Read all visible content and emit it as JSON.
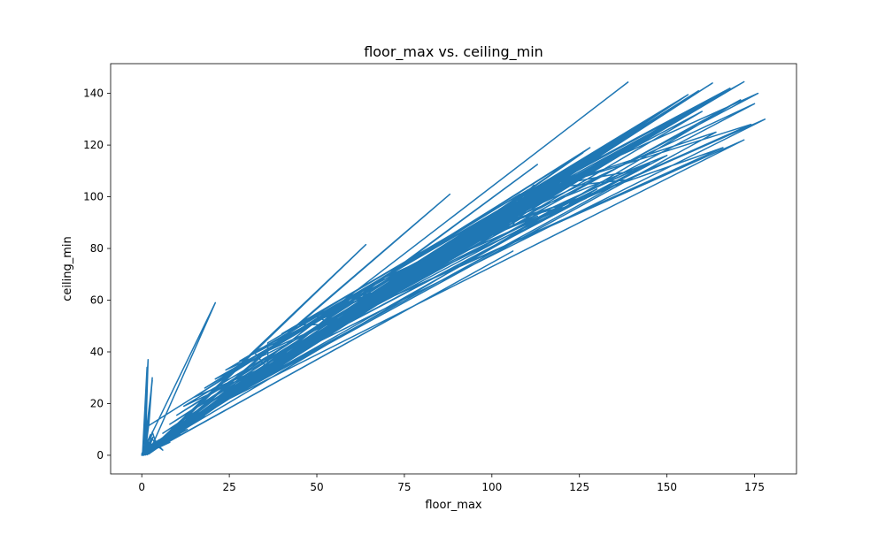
{
  "chart_data": {
    "type": "line",
    "title": "floor_max vs. ceiling_min",
    "xlabel": "floor_max",
    "ylabel": "ceiling_min",
    "xlim": [
      -8.9,
      187.0
    ],
    "ylim": [
      -7.2,
      151.5
    ],
    "xticks": [
      0,
      25,
      50,
      75,
      100,
      125,
      150,
      175
    ],
    "yticks": [
      0,
      20,
      40,
      60,
      80,
      100,
      120,
      140
    ],
    "grid": false,
    "legend": "none",
    "series": [
      {
        "color": "#1f77b4",
        "x": [
          0.0,
          1.2,
          2.0,
          0.5,
          3.0,
          0.2,
          1.5,
          0.8,
          0.0,
          2.5,
          1.0,
          1.8,
          0.3,
          2.2,
          0.6,
          3.0,
          1.0,
          0.4,
          2.0,
          1.6,
          3.0,
          4.5,
          1.2,
          0.5,
          2.8,
          6.0,
          3.5,
          1.0,
          0.0,
          2.0,
          3.2,
          1.5,
          4.0,
          0.6,
          2.4,
          1.0,
          0.3,
          3.0,
          5.0,
          2.0,
          0.8,
          1.6,
          0.4,
          2.6,
          1.2,
          8.0,
          0.5,
          0.0,
          1.5,
          3.4,
          1.0,
          2.2,
          0.6,
          1.8,
          0.0,
          2.0,
          4.8,
          1.0,
          6.0,
          1.2,
          0.4,
          2.5,
          1.0,
          0.3,
          3.0,
          9.0,
          1.5,
          2.0,
          5.0,
          0.6,
          1.2,
          7.0,
          2.0,
          1.0,
          0.5,
          3.0,
          11.0,
          4.0,
          0.8,
          2.0,
          1.0,
          6.0,
          13.0,
          2.5,
          4.0,
          1.5,
          8.0,
          0.8,
          3.5,
          15.0,
          1.0,
          6.5,
          2.0,
          10.0,
          1.5,
          0.8,
          18.0,
          3.0,
          7.0,
          1.0,
          12.0,
          2.0,
          4.5,
          20.0,
          1.2,
          9.0,
          2.0,
          14.0,
          0.8,
          5.0,
          22.0,
          1.5,
          11.0,
          3.0,
          17.0,
          1.0,
          25.0,
          4.0,
          8.0,
          0.6,
          19.0,
          2.0,
          28.0,
          6.0,
          13.0,
          1.0,
          31.0,
          3.0,
          16.0,
          0.5,
          23.0,
          5.0,
          35.0,
          1.5,
          9.0,
          26.0,
          2.0,
          38.0,
          4.0,
          14.0,
          1.0,
          29.0,
          7.0,
          42.0,
          0.8,
          18.0,
          3.0,
          33.0,
          10.0,
          45.0,
          2.0,
          21.0,
          5.0,
          37.0,
          1.0,
          49.0,
          12.0,
          25.0,
          0.6,
          40.0,
          6.0,
          52.0,
          3.0,
          30.0,
          15.0,
          44.0,
          1.5,
          56.0,
          8.0,
          34.0,
          2.0,
          48.0,
          18.0,
          60.0,
          4.0,
          38.0,
          10.0,
          53.0,
          1.0,
          64.0,
          22.0,
          42.0,
          5.0,
          57.0,
          13.0,
          68.0,
          2.5,
          46.0,
          26.0,
          62.0,
          7.0,
          72.0,
          16.0,
          51.0,
          1.5,
          66.0,
          30.0,
          76.0,
          9.0,
          55.0,
          20.0,
          70.0,
          3.0,
          80.0,
          35.0,
          60.0,
          12.0,
          74.0,
          24.0,
          85.0,
          2.0,
          64.0,
          40.0,
          78.0,
          15.0,
          88.0,
          5.0,
          68.0,
          28.0,
          83.0,
          44.0,
          92.0,
          18.0,
          72.0,
          1.0,
          87.0,
          32.0,
          96.0,
          50.0,
          76.0,
          8.0,
          91.0,
          22.0,
          100.0,
          38.0,
          80.0,
          55.0,
          95.0,
          12.0,
          104.0,
          26.0,
          84.0,
          44.0,
          99.0,
          3.0,
          108.0,
          60.0,
          88.0,
          30.0,
          103.0,
          16.0,
          112.0,
          48.0,
          92.0,
          6.0,
          107.0,
          34.0,
          116.0,
          66.0,
          96.0,
          20.0,
          111.0,
          52.0,
          120.0,
          10.0,
          100.0,
          38.0,
          115.0,
          70.0,
          124.0,
          24.0,
          104.0,
          56.0,
          119.0,
          4.0,
          128.0,
          42.0,
          108.0,
          76.0,
          123.0,
          14.0,
          132.0,
          28.0,
          112.0,
          60.0,
          127.0,
          46.0,
          136.0,
          80.0,
          116.0,
          8.0,
          131.0,
          32.0,
          140.0,
          64.0,
          120.0,
          18.0,
          135.0,
          50.0,
          144.0,
          86.0,
          124.0,
          2.0,
          139.0,
          36.0,
          148.0,
          68.0,
          128.0,
          22.0,
          143.0,
          54.0,
          152.0,
          90.0,
          132.0,
          12.0,
          147.0,
          40.0,
          156.0,
          72.0,
          136.0,
          26.0,
          151.0,
          58.0,
          160.0,
          94.0,
          140.0,
          6.0,
          155.0,
          44.0,
          164.0,
          76.0,
          144.0,
          30.0,
          159.0,
          62.0,
          168.0,
          98.0,
          148.0,
          16.0,
          163.0,
          48.0,
          172.0,
          80.0,
          152.0,
          34.0,
          167.0,
          66.0,
          176.0,
          102.0,
          156.0,
          2.0,
          171.0,
          52.0,
          175.0,
          84.0,
          160.0,
          38.0,
          178.0,
          70.0,
          174.0,
          106.0,
          164.0,
          20.0,
          172.0,
          56.0,
          166.0,
          88.0,
          150.0,
          42.0,
          145.0,
          74.0,
          140.0,
          110.0,
          138.0,
          24.0,
          130.0,
          60.0,
          127.0,
          92.0,
          120.0,
          46.0,
          113.0,
          78.0,
          106.0,
          112.0,
          98.0,
          28.0,
          93.0,
          64.0,
          87.0,
          96.0,
          80.0,
          50.0,
          75.0,
          82.0,
          68.0,
          108.0,
          64.0,
          32.0,
          60.0,
          68.0,
          55.0,
          100.0,
          50.0,
          54.0,
          45.0,
          86.0,
          40.0,
          112.0,
          36.0,
          36.0,
          32.0,
          72.0,
          28.0,
          104.0,
          24.0,
          58.0,
          21.0,
          90.0,
          18.0,
          120.0,
          15.0,
          40.0,
          12.0,
          76.0,
          10.0,
          108.0,
          8.0,
          62.0,
          6.0,
          94.0,
          4.0,
          126.0,
          3.0,
          44.0,
          2.0,
          80.0,
          1.5,
          112.0,
          1.0,
          66.0,
          0.5,
          98.0,
          0.2,
          128.0,
          2.0,
          3.0,
          1.0,
          2.0,
          21.0,
          2.0,
          29.0,
          1.0,
          64.0,
          2.0,
          88.0,
          1.0,
          106.0,
          1.0,
          113.0,
          0.0,
          139.0
        ],
        "y": [
          0.0,
          3.5,
          12.0,
          1.0,
          6.0,
          0.2,
          34.0,
          2.0,
          0.5,
          8.0,
          1.5,
          37.0,
          0.3,
          4.0,
          1.0,
          29.0,
          2.5,
          0.4,
          5.0,
          1.0,
          9.0,
          3.0,
          0.8,
          0.2,
          6.5,
          2.0,
          4.5,
          1.0,
          0.0,
          3.0,
          7.0,
          0.8,
          5.5,
          0.3,
          2.5,
          1.2,
          0.2,
          4.0,
          6.0,
          1.5,
          0.5,
          3.2,
          0.1,
          2.0,
          0.8,
          5.0,
          0.3,
          0.0,
          1.8,
          4.2,
          0.6,
          2.6,
          0.2,
          1.4,
          0.0,
          3.6,
          5.8,
          0.8,
          4.4,
          1.2,
          0.3,
          2.2,
          0.7,
          0.1,
          3.0,
          6.5,
          1.0,
          2.4,
          4.8,
          0.4,
          1.6,
          5.6,
          2.0,
          0.6,
          0.2,
          3.4,
          8.0,
          4.0,
          0.5,
          2.8,
          0.9,
          6.2,
          10.0,
          2.2,
          4.6,
          1.0,
          7.4,
          0.4,
          3.6,
          12.5,
          0.8,
          6.0,
          2.0,
          9.6,
          1.2,
          0.5,
          15.0,
          3.0,
          7.8,
          0.7,
          11.0,
          2.0,
          4.6,
          17.5,
          1.0,
          9.0,
          2.2,
          13.0,
          0.6,
          5.2,
          19.5,
          1.4,
          10.5,
          3.2,
          15.5,
          0.8,
          22.0,
          4.4,
          8.2,
          0.5,
          17.5,
          2.0,
          25.0,
          6.2,
          12.5,
          0.9,
          28.0,
          3.0,
          15.0,
          0.4,
          21.0,
          5.0,
          31.0,
          1.6,
          9.0,
          24.0,
          2.0,
          34.0,
          4.0,
          13.5,
          1.0,
          27.0,
          7.0,
          37.5,
          0.8,
          17.0,
          3.0,
          30.0,
          10.0,
          40.0,
          2.0,
          20.0,
          5.0,
          34.0,
          1.0,
          44.0,
          11.5,
          23.5,
          0.6,
          37.0,
          6.0,
          47.0,
          3.0,
          28.0,
          14.0,
          41.0,
          1.4,
          50.0,
          7.6,
          32.0,
          2.0,
          44.5,
          17.0,
          54.0,
          4.0,
          35.5,
          9.6,
          49.0,
          1.0,
          58.0,
          20.5,
          39.0,
          5.0,
          52.5,
          12.5,
          61.0,
          2.4,
          43.0,
          24.5,
          57.0,
          6.8,
          64.0,
          15.0,
          47.5,
          1.4,
          60.5,
          28.0,
          68.0,
          8.6,
          51.5,
          19.0,
          64.0,
          3.0,
          71.0,
          33.0,
          55.5,
          11.5,
          67.5,
          22.5,
          74.5,
          2.0,
          59.0,
          37.5,
          71.0,
          14.5,
          77.0,
          5.0,
          62.5,
          26.5,
          75.0,
          41.5,
          80.5,
          17.0,
          66.0,
          1.0,
          78.5,
          30.0,
          84.0,
          47.0,
          69.5,
          7.6,
          82.0,
          21.0,
          87.5,
          35.5,
          73.0,
          51.5,
          85.5,
          11.5,
          91.0,
          24.5,
          76.5,
          41.0,
          89.0,
          3.0,
          94.0,
          56.0,
          80.0,
          28.0,
          92.5,
          15.0,
          97.5,
          45.0,
          83.5,
          5.8,
          95.5,
          32.0,
          101.0,
          61.5,
          87.0,
          18.5,
          99.0,
          48.5,
          104.0,
          9.4,
          90.5,
          35.5,
          102.5,
          65.5,
          107.0,
          22.5,
          94.0,
          52.5,
          106.0,
          3.8,
          110.5,
          39.0,
          97.5,
          71.0,
          109.5,
          13.0,
          113.5,
          26.0,
          101.0,
          56.0,
          113.0,
          43.0,
          116.5,
          75.0,
          104.5,
          7.5,
          116.5,
          30.0,
          120.0,
          60.0,
          108.0,
          17.0,
          120.0,
          46.5,
          123.0,
          80.5,
          111.5,
          2.0,
          123.5,
          33.5,
          126.5,
          63.5,
          115.0,
          20.5,
          127.0,
          50.5,
          129.5,
          84.0,
          118.5,
          11.0,
          130.5,
          37.5,
          133.0,
          67.0,
          122.0,
          24.0,
          134.0,
          54.0,
          136.0,
          88.0,
          125.5,
          5.6,
          137.5,
          41.0,
          139.0,
          71.0,
          129.0,
          28.0,
          141.0,
          58.0,
          142.0,
          91.5,
          132.5,
          15.0,
          144.0,
          45.0,
          144.5,
          75.0,
          136.0,
          31.5,
          141.0,
          61.5,
          140.0,
          95.0,
          139.5,
          2.0,
          137.5,
          48.5,
          136.0,
          78.5,
          133.0,
          35.5,
          130.0,
          65.5,
          128.0,
          99.0,
          125.0,
          18.5,
          122.0,
          52.0,
          119.0,
          82.0,
          116.0,
          39.0,
          113.0,
          69.0,
          110.0,
          102.5,
          106.5,
          22.0,
          103.0,
          56.0,
          99.5,
          86.0,
          96.0,
          43.0,
          92.5,
          72.5,
          89.0,
          104.5,
          85.5,
          26.0,
          82.0,
          59.5,
          78.5,
          89.5,
          75.0,
          46.5,
          71.5,
          76.5,
          68.0,
          101.0,
          64.5,
          30.0,
          61.0,
          63.5,
          57.5,
          93.0,
          54.0,
          50.5,
          50.5,
          80.0,
          47.0,
          104.0,
          43.5,
          33.5,
          40.0,
          67.0,
          36.5,
          96.5,
          33.0,
          54.0,
          29.5,
          83.5,
          26.0,
          112.0,
          22.5,
          37.0,
          19.0,
          70.5,
          15.5,
          100.0,
          12.0,
          57.5,
          8.5,
          87.5,
          5.0,
          117.0,
          1.5,
          41.0,
          0.5,
          74.0,
          0.2,
          104.0,
          0.1,
          61.0,
          0.0,
          91.0,
          0.0,
          119.0,
          11.5,
          30.0,
          0.5,
          6.0,
          59.0,
          0.8,
          35.5,
          0.4,
          81.5,
          0.6,
          101.0,
          0.2,
          79.0,
          0.3,
          112.5,
          0.0,
          144.5
        ]
      }
    ]
  }
}
